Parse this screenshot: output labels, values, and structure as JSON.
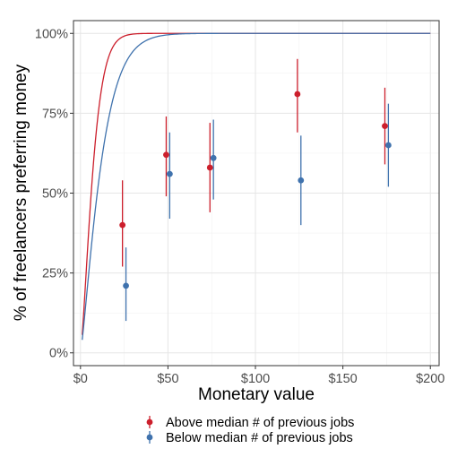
{
  "chart_data": {
    "type": "scatter",
    "xlabel": "Monetary value",
    "ylabel": "% of freelancers preferring money",
    "x_ticks": [
      {
        "value": 0,
        "label": "$0"
      },
      {
        "value": 50,
        "label": "$50"
      },
      {
        "value": 100,
        "label": "$100"
      },
      {
        "value": 150,
        "label": "$150"
      },
      {
        "value": 200,
        "label": "$200"
      }
    ],
    "y_ticks": [
      {
        "value": 0,
        "label": "0%"
      },
      {
        "value": 0.25,
        "label": "25%"
      },
      {
        "value": 0.5,
        "label": "50%"
      },
      {
        "value": 0.75,
        "label": "75%"
      },
      {
        "value": 1,
        "label": "100%"
      }
    ],
    "xlim": [
      -4,
      205
    ],
    "ylim": [
      -0.04,
      1.04
    ],
    "grid": true,
    "legend_position": "bottom",
    "series": [
      {
        "name": "Above median # of previous jobs",
        "color": "#CC1F2C",
        "points": [
          {
            "x": 24,
            "y": 0.4,
            "lo": 0.27,
            "hi": 0.54
          },
          {
            "x": 49,
            "y": 0.62,
            "lo": 0.49,
            "hi": 0.74
          },
          {
            "x": 74,
            "y": 0.58,
            "lo": 0.44,
            "hi": 0.72
          },
          {
            "x": 124,
            "y": 0.81,
            "lo": 0.69,
            "hi": 0.92
          },
          {
            "x": 174,
            "y": 0.71,
            "lo": 0.59,
            "hi": 0.83
          }
        ],
        "fit": {
          "x_start": 1,
          "x_end": 200,
          "a": 0.0578,
          "b": 0.1371
        }
      },
      {
        "name": "Below median # of previous jobs",
        "color": "#3F72AD",
        "points": [
          {
            "x": 26,
            "y": 0.21,
            "lo": 0.1,
            "hi": 0.33
          },
          {
            "x": 51,
            "y": 0.56,
            "lo": 0.42,
            "hi": 0.69
          },
          {
            "x": 76,
            "y": 0.61,
            "lo": 0.48,
            "hi": 0.73
          },
          {
            "x": 126,
            "y": 0.54,
            "lo": 0.4,
            "hi": 0.68
          },
          {
            "x": 176,
            "y": 0.65,
            "lo": 0.52,
            "hi": 0.78
          }
        ],
        "fit": {
          "x_start": 1,
          "x_end": 200,
          "a": 0.0415,
          "b": 0.1246
        }
      }
    ]
  }
}
